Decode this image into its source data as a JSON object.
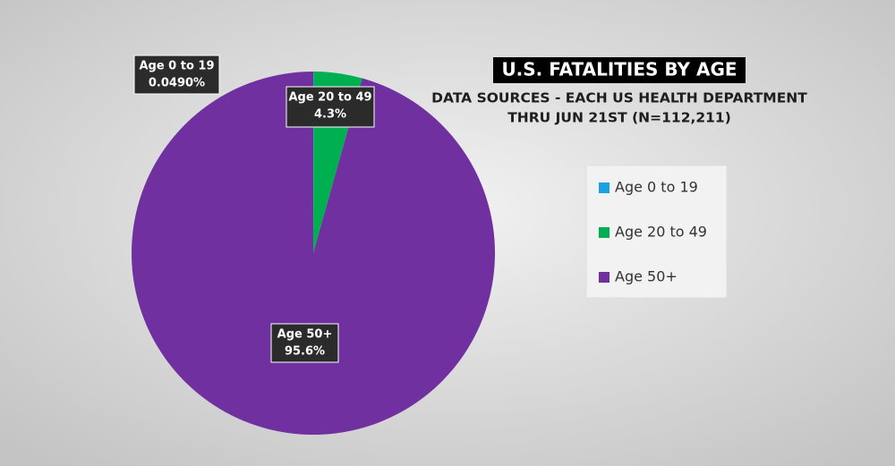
{
  "chart_data": {
    "type": "pie",
    "title": "U.S. FATALITIES BY AGE",
    "subtitle": [
      "DATA SOURCES - EACH US HEALTH DEPARTMENT",
      "THRU JUN 21ST (N=112,211)"
    ],
    "categories": [
      "Age 0 to 19",
      "Age 20 to 49",
      "Age 50+"
    ],
    "values": [
      0.049,
      4.3,
      95.6
    ],
    "value_labels": [
      "0.0490%",
      "4.3%",
      "95.6%"
    ],
    "colors": [
      "#1ba1e2",
      "#00b050",
      "#7030a0"
    ],
    "legend": "right"
  }
}
